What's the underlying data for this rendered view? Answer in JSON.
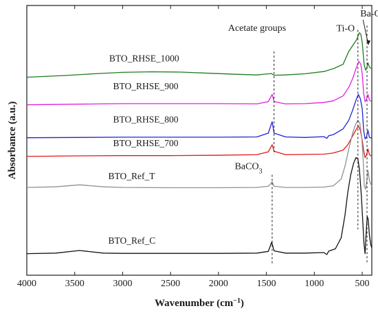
{
  "chart_data": {
    "type": "line",
    "xlabel": "Wavenumber (cm",
    "xlabel_sup": "−1",
    "xlabel_close": ")",
    "ylabel": "Absorbance (a.u.)",
    "xlim": [
      4000,
      400
    ],
    "x_reversed": true,
    "x_ticks": [
      4000,
      3500,
      3000,
      2500,
      2000,
      1500,
      1000,
      500
    ],
    "y_ticks_shown": false,
    "grid": false,
    "legend": "none (series labeled inline)",
    "series": [
      {
        "name": "BTO_RHSE_1000",
        "color": "#1f7a1f",
        "baseline": 6.42,
        "labelX": 3140,
        "labelY": 6.95,
        "points": [
          [
            4000,
            6.4
          ],
          [
            3600,
            6.46
          ],
          [
            3300,
            6.52
          ],
          [
            3000,
            6.57
          ],
          [
            2700,
            6.59
          ],
          [
            2400,
            6.58
          ],
          [
            2100,
            6.54
          ],
          [
            1800,
            6.5
          ],
          [
            1600,
            6.48
          ],
          [
            1450,
            6.53
          ],
          [
            1420,
            6.47
          ],
          [
            1300,
            6.48
          ],
          [
            1100,
            6.52
          ],
          [
            900,
            6.6
          ],
          [
            800,
            6.7
          ],
          [
            700,
            6.85
          ],
          [
            640,
            7.3
          ],
          [
            600,
            7.5
          ],
          [
            560,
            7.7
          ],
          [
            530,
            7.95
          ],
          [
            515,
            7.9
          ],
          [
            500,
            7.6
          ],
          [
            480,
            6.85
          ],
          [
            465,
            6.65
          ],
          [
            455,
            6.7
          ],
          [
            440,
            6.9
          ],
          [
            425,
            6.75
          ],
          [
            400,
            6.7
          ]
        ]
      },
      {
        "name": "BTO_RHSE_900",
        "color": "#e020e0",
        "baseline": 5.45,
        "labelX": 3100,
        "labelY": 5.98,
        "points": [
          [
            4000,
            5.44
          ],
          [
            3500,
            5.46
          ],
          [
            3000,
            5.48
          ],
          [
            2500,
            5.48
          ],
          [
            2000,
            5.48
          ],
          [
            1600,
            5.47
          ],
          [
            1480,
            5.55
          ],
          [
            1440,
            5.8
          ],
          [
            1420,
            5.55
          ],
          [
            1300,
            5.47
          ],
          [
            1100,
            5.48
          ],
          [
            900,
            5.52
          ],
          [
            800,
            5.58
          ],
          [
            700,
            5.75
          ],
          [
            640,
            6.05
          ],
          [
            600,
            6.35
          ],
          [
            560,
            6.75
          ],
          [
            535,
            6.95
          ],
          [
            515,
            6.85
          ],
          [
            500,
            6.5
          ],
          [
            485,
            5.85
          ],
          [
            470,
            5.55
          ],
          [
            455,
            5.62
          ],
          [
            440,
            5.8
          ],
          [
            425,
            5.6
          ],
          [
            400,
            5.55
          ]
        ]
      },
      {
        "name": "BTO_RHSE_800",
        "color": "#2020d8",
        "baseline": 4.3,
        "labelX": 3100,
        "labelY": 4.82,
        "points": [
          [
            4000,
            4.29
          ],
          [
            3500,
            4.3
          ],
          [
            3000,
            4.31
          ],
          [
            2500,
            4.31
          ],
          [
            2000,
            4.31
          ],
          [
            1600,
            4.32
          ],
          [
            1480,
            4.45
          ],
          [
            1440,
            4.85
          ],
          [
            1420,
            4.45
          ],
          [
            1300,
            4.32
          ],
          [
            1100,
            4.3
          ],
          [
            900,
            4.33
          ],
          [
            870,
            4.27
          ],
          [
            850,
            4.36
          ],
          [
            800,
            4.4
          ],
          [
            700,
            4.6
          ],
          [
            640,
            4.9
          ],
          [
            600,
            5.25
          ],
          [
            560,
            5.65
          ],
          [
            540,
            5.8
          ],
          [
            520,
            5.65
          ],
          [
            500,
            5.3
          ],
          [
            485,
            4.55
          ],
          [
            470,
            4.25
          ],
          [
            455,
            4.32
          ],
          [
            440,
            4.55
          ],
          [
            425,
            4.3
          ],
          [
            400,
            4.28
          ]
        ]
      },
      {
        "name": "BTO_RHSE_700",
        "color": "#e01818",
        "baseline": 3.65,
        "labelX": 3100,
        "labelY": 4.0,
        "points": [
          [
            4000,
            3.64
          ],
          [
            3500,
            3.66
          ],
          [
            3000,
            3.67
          ],
          [
            2500,
            3.67
          ],
          [
            2000,
            3.68
          ],
          [
            1600,
            3.7
          ],
          [
            1480,
            3.8
          ],
          [
            1440,
            4.05
          ],
          [
            1420,
            3.82
          ],
          [
            1300,
            3.7
          ],
          [
            1100,
            3.71
          ],
          [
            900,
            3.72
          ],
          [
            800,
            3.76
          ],
          [
            700,
            3.86
          ],
          [
            650,
            4.05
          ],
          [
            600,
            4.35
          ],
          [
            560,
            4.6
          ],
          [
            540,
            4.7
          ],
          [
            520,
            4.55
          ],
          [
            500,
            4.2
          ],
          [
            485,
            3.85
          ],
          [
            470,
            3.6
          ],
          [
            455,
            3.68
          ],
          [
            440,
            3.9
          ],
          [
            425,
            3.7
          ],
          [
            400,
            3.65
          ]
        ]
      },
      {
        "name": "BTO_Ref_T",
        "color": "#909090",
        "baseline": 2.55,
        "labelX": 3150,
        "labelY": 2.85,
        "points": [
          [
            4000,
            2.56
          ],
          [
            3700,
            2.58
          ],
          [
            3450,
            2.65
          ],
          [
            3200,
            2.58
          ],
          [
            3000,
            2.56
          ],
          [
            2500,
            2.55
          ],
          [
            2000,
            2.55
          ],
          [
            1600,
            2.56
          ],
          [
            1480,
            2.6
          ],
          [
            1440,
            2.75
          ],
          [
            1420,
            2.6
          ],
          [
            1300,
            2.56
          ],
          [
            1100,
            2.56
          ],
          [
            900,
            2.57
          ],
          [
            800,
            2.62
          ],
          [
            720,
            2.85
          ],
          [
            680,
            3.3
          ],
          [
            640,
            3.9
          ],
          [
            600,
            4.45
          ],
          [
            570,
            4.75
          ],
          [
            545,
            4.9
          ],
          [
            525,
            4.8
          ],
          [
            505,
            4.3
          ],
          [
            490,
            3.5
          ],
          [
            478,
            2.6
          ],
          [
            465,
            2.5
          ],
          [
            455,
            2.7
          ],
          [
            440,
            3.15
          ],
          [
            425,
            2.8
          ],
          [
            400,
            2.6
          ]
        ]
      },
      {
        "name": "BTO_Ref_C",
        "color": "#111111",
        "baseline": 0.25,
        "labelX": 3150,
        "labelY": 0.6,
        "points": [
          [
            4000,
            0.25
          ],
          [
            3700,
            0.27
          ],
          [
            3450,
            0.36
          ],
          [
            3200,
            0.27
          ],
          [
            3000,
            0.26
          ],
          [
            2500,
            0.26
          ],
          [
            2000,
            0.26
          ],
          [
            1600,
            0.27
          ],
          [
            1480,
            0.33
          ],
          [
            1445,
            0.65
          ],
          [
            1420,
            0.35
          ],
          [
            1300,
            0.27
          ],
          [
            1100,
            0.27
          ],
          [
            900,
            0.29
          ],
          [
            870,
            0.22
          ],
          [
            850,
            0.34
          ],
          [
            780,
            0.42
          ],
          [
            720,
            0.8
          ],
          [
            680,
            1.6
          ],
          [
            650,
            2.4
          ],
          [
            620,
            3.0
          ],
          [
            590,
            3.4
          ],
          [
            565,
            3.6
          ],
          [
            545,
            3.55
          ],
          [
            530,
            3.2
          ],
          [
            510,
            2.3
          ],
          [
            495,
            1.4
          ],
          [
            482,
            0.6
          ],
          [
            470,
            0.25
          ],
          [
            460,
            0.9
          ],
          [
            448,
            1.55
          ],
          [
            438,
            1.45
          ],
          [
            425,
            0.9
          ],
          [
            410,
            0.55
          ],
          [
            400,
            0.45
          ]
        ]
      }
    ],
    "annotations": [
      {
        "text": "Acetate groups",
        "x": 1420,
        "textX": 1900,
        "textY": 8.02,
        "lineFrom": 7.3,
        "lineTo": 3.7
      },
      {
        "text": "BaCO",
        "sub": "3",
        "x": 1440,
        "textX": 1830,
        "textY": 3.2,
        "lineFrom": 3.0,
        "lineTo": -0.1
      },
      {
        "text": "Ti-O",
        "x": 545,
        "textX": 770,
        "textY": 8.0,
        "lineFrom": 8.05,
        "lineTo": 1.1
      },
      {
        "text": "Ba-O",
        "x": 450,
        "textX": 520,
        "textY": 8.52,
        "lineFrom": 8.2,
        "lineTo": -0.1
      }
    ]
  }
}
